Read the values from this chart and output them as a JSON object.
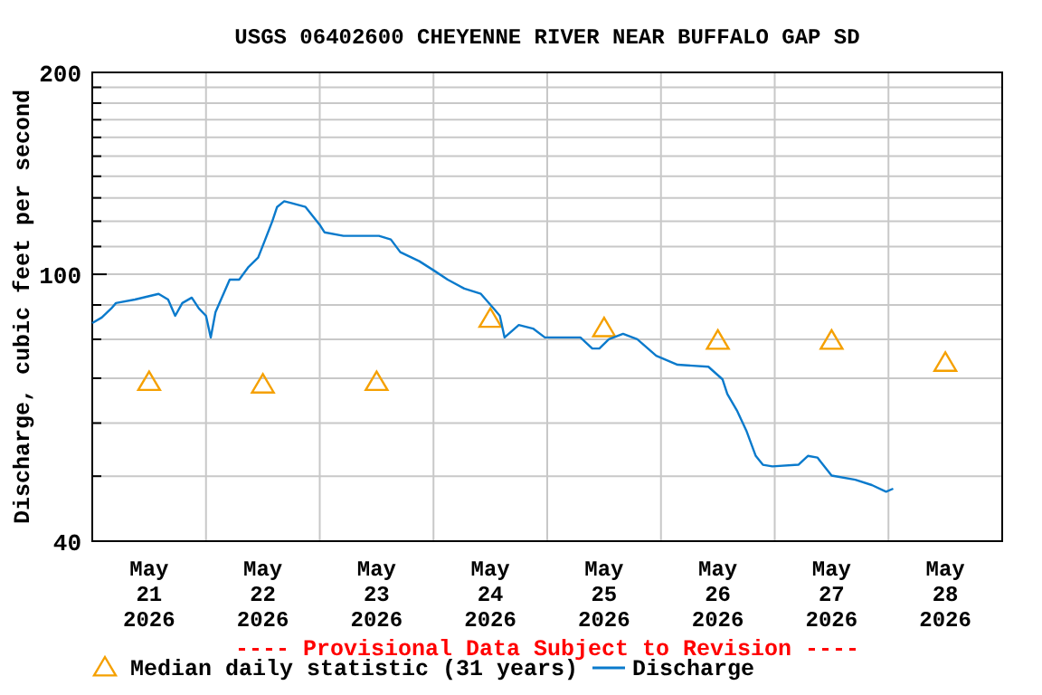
{
  "chart_data": {
    "type": "line",
    "title": "USGS 06402600 CHEYENNE RIVER NEAR BUFFALO GAP SD",
    "ylabel": "Discharge, cubic feet per second",
    "log": true,
    "grid": true,
    "legend": "bottom",
    "xlim": [
      "2026-05-21T00:00",
      "2026-05-29T00:00"
    ],
    "xticks": [
      {
        "value": "2026-05-21T00:00",
        "label": null
      },
      {
        "value": "2026-05-21T12:00",
        "label": "May\n21\n2026"
      },
      {
        "value": "2026-05-22T00:00",
        "label": null
      },
      {
        "value": "2026-05-22T12:00",
        "label": "May\n22\n2026"
      },
      {
        "value": "2026-05-23T00:00",
        "label": null
      },
      {
        "value": "2026-05-23T12:00",
        "label": "May\n23\n2026"
      },
      {
        "value": "2026-05-24T00:00",
        "label": null
      },
      {
        "value": "2026-05-24T12:00",
        "label": "May\n24\n2026"
      },
      {
        "value": "2026-05-25T00:00",
        "label": null
      },
      {
        "value": "2026-05-25T12:00",
        "label": "May\n25\n2026"
      },
      {
        "value": "2026-05-26T00:00",
        "label": null
      },
      {
        "value": "2026-05-26T12:00",
        "label": "May\n26\n2026"
      },
      {
        "value": "2026-05-27T00:00",
        "label": null
      },
      {
        "value": "2026-05-27T12:00",
        "label": "May\n27\n2026"
      },
      {
        "value": "2026-05-28T00:00",
        "label": null
      },
      {
        "value": "2026-05-28T12:00",
        "label": "May\n28\n2026"
      },
      {
        "value": "2026-05-29T00:00",
        "label": null
      }
    ],
    "ylim": [
      40,
      200
    ],
    "yticks": [
      40,
      {
        "value": 50,
        "label": null
      },
      {
        "value": 60,
        "label": null
      },
      {
        "value": 70,
        "label": null
      },
      {
        "value": 80,
        "label": null
      },
      {
        "value": 90,
        "label": null
      },
      100,
      {
        "value": 110,
        "label": null
      },
      {
        "value": 120,
        "label": null
      },
      {
        "value": 130,
        "label": null
      },
      {
        "value": 140,
        "label": null
      },
      {
        "value": 150,
        "label": null
      },
      {
        "value": 160,
        "label": null
      },
      {
        "value": 170,
        "label": null
      },
      {
        "value": 180,
        "label": null
      },
      {
        "value": 190,
        "label": null
      },
      200
    ],
    "annotations": [
      "---- Provisional Data Subject to Revision ----"
    ],
    "series": [
      {
        "name": "Median daily statistic (31 years)",
        "type": "scatter",
        "marker": "triangle",
        "color": "#f5a000",
        "x": [
          "2026-05-21T12:00",
          "2026-05-22T12:00",
          "2026-05-23T12:00",
          "2026-05-24T12:00",
          "2026-05-25T12:00",
          "2026-05-26T12:00",
          "2026-05-27T12:00",
          "2026-05-28T12:00"
        ],
        "values": [
          69,
          68.4,
          69,
          85.7,
          83,
          79.5,
          79.5,
          73.7
        ]
      },
      {
        "name": "Discharge",
        "color": "#0a7acc",
        "x": [
          "2026-05-21T00:00",
          "2026-05-21T02:00",
          "2026-05-21T04:00",
          "2026-05-21T05:00",
          "2026-05-21T09:00",
          "2026-05-21T14:00",
          "2026-05-21T16:00",
          "2026-05-21T17:30",
          "2026-05-21T19:00",
          "2026-05-21T21:00",
          "2026-05-21T22:30",
          "2026-05-22T00:00",
          "2026-05-22T01:00",
          "2026-05-22T02:00",
          "2026-05-22T04:00",
          "2026-05-22T05:00",
          "2026-05-22T07:00",
          "2026-05-22T09:00",
          "2026-05-22T11:00",
          "2026-05-22T12:30",
          "2026-05-22T14:00",
          "2026-05-22T15:00",
          "2026-05-22T16:30",
          "2026-05-22T18:00",
          "2026-05-22T21:00",
          "2026-05-23T00:00",
          "2026-05-23T01:00",
          "2026-05-23T05:00",
          "2026-05-23T12:30",
          "2026-05-23T15:00",
          "2026-05-23T17:00",
          "2026-05-23T21:00",
          "2026-05-24T00:00",
          "2026-05-24T03:00",
          "2026-05-24T06:30",
          "2026-05-24T10:00",
          "2026-05-24T13:00",
          "2026-05-24T14:00",
          "2026-05-24T15:00",
          "2026-05-24T18:00",
          "2026-05-24T21:00",
          "2026-05-24T23:30",
          "2026-05-25T07:00",
          "2026-05-25T09:30",
          "2026-05-25T11:00",
          "2026-05-25T13:00",
          "2026-05-25T16:00",
          "2026-05-25T19:00",
          "2026-05-25T23:00",
          "2026-05-26T03:30",
          "2026-05-26T10:00",
          "2026-05-26T13:00",
          "2026-05-26T14:00",
          "2026-05-26T16:00",
          "2026-05-26T18:00",
          "2026-05-26T20:00",
          "2026-05-26T21:30",
          "2026-05-26T23:30",
          "2026-05-27T05:00",
          "2026-05-27T07:00",
          "2026-05-27T09:00",
          "2026-05-27T12:00",
          "2026-05-27T17:00",
          "2026-05-27T20:30",
          "2026-05-27T23:30",
          "2026-05-28T01:00"
        ],
        "values": [
          84.6,
          86.2,
          88.9,
          90.6,
          91.7,
          93.5,
          91.7,
          86.7,
          90.6,
          92.3,
          88.9,
          86.7,
          80.5,
          87.8,
          94.6,
          98.2,
          98.2,
          102.6,
          105.9,
          112.7,
          120,
          126,
          128.5,
          127.7,
          126,
          118.5,
          115.5,
          114.1,
          114.1,
          112.7,
          107.9,
          104.6,
          101.4,
          98.2,
          95.2,
          93.5,
          88.4,
          86.7,
          80.5,
          84,
          83,
          80.5,
          80.5,
          77.5,
          77.5,
          80,
          81.5,
          80,
          75.6,
          73.3,
          72.8,
          69.7,
          66.3,
          62.7,
          58.5,
          53.6,
          52,
          51.7,
          52,
          53.6,
          53.3,
          50.1,
          49.4,
          48.5,
          47.4,
          47.9
        ]
      }
    ]
  }
}
